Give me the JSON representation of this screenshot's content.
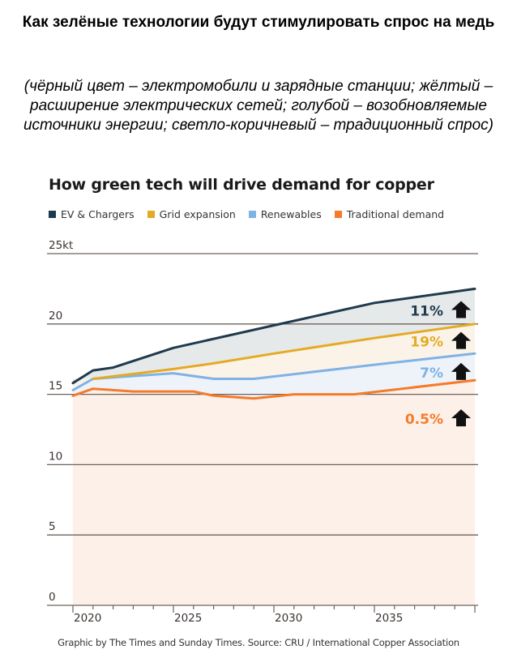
{
  "header": {
    "title_ru": "Как зелёные технологии будут стимулировать спрос на медь",
    "subtitle_ru": "(чёрный цвет – электромобили и зарядные станции; жёлтый – расширение электрических сетей; голубой – возобновляемые источники энергии; светло-коричневый – традиционный спрос)"
  },
  "footer": {
    "source": "Graphic by The Times and Sunday Times. Source: CRU / International Copper Association"
  },
  "chart_data": {
    "type": "area",
    "title": "How green tech will drive demand for copper",
    "xlabel": "",
    "ylabel": "",
    "y_unit_label": "25kt",
    "ylim": [
      0,
      25
    ],
    "xlim": [
      2020,
      2040
    ],
    "yticks": [
      0,
      5,
      10,
      15,
      20,
      25
    ],
    "ytick_labels": [
      "0",
      "5",
      "10",
      "15",
      "20",
      "25kt"
    ],
    "xticks_major": [
      2020,
      2025,
      2030,
      2035
    ],
    "xtick_labels": [
      "2020",
      "2025",
      "2030",
      "2035"
    ],
    "grid": true,
    "legend_position": "top-left",
    "stacked_cumulative": true,
    "series": [
      {
        "name": "EV & Chargers",
        "color": "#1f3a4d",
        "fill": "#e6e9ea",
        "growth_label": "11%",
        "x": [
          2020,
          2021,
          2022,
          2025,
          2030,
          2035,
          2040
        ],
        "values": [
          15.8,
          16.7,
          16.9,
          18.3,
          19.9,
          21.5,
          22.5
        ]
      },
      {
        "name": "Grid expansion",
        "color": "#e3ab25",
        "fill": "#fcf3e8",
        "growth_label": "19%",
        "x": [
          2021,
          2025,
          2027,
          2030,
          2035,
          2040
        ],
        "values": [
          16.1,
          16.8,
          17.2,
          17.9,
          19.0,
          20.0
        ]
      },
      {
        "name": "Renewables",
        "color": "#7fb2e5",
        "fill": "#eef3fa",
        "growth_label": "7%",
        "x": [
          2020,
          2021,
          2025,
          2027,
          2029,
          2035,
          2040
        ],
        "values": [
          15.3,
          16.1,
          16.5,
          16.1,
          16.1,
          17.1,
          17.9
        ]
      },
      {
        "name": "Traditional demand",
        "color": "#f47b2a",
        "fill": "#fdf0e8",
        "growth_label": "0.5%",
        "x": [
          2020,
          2021,
          2023,
          2026,
          2027,
          2029,
          2031,
          2034,
          2040
        ],
        "values": [
          14.9,
          15.4,
          15.2,
          15.2,
          14.9,
          14.7,
          15.0,
          15.0,
          16.0
        ]
      }
    ],
    "annotation_icon": "arrow-up-icon",
    "arrow_color": "#111111"
  }
}
